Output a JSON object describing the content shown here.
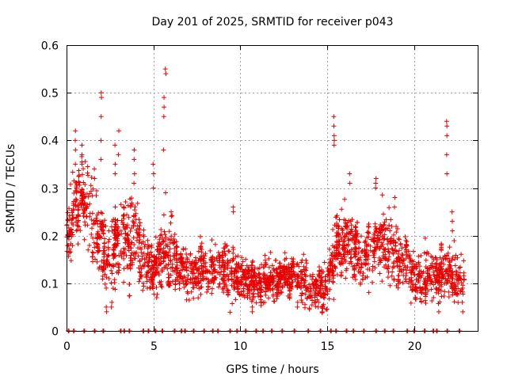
{
  "chart_data": {
    "type": "scatter",
    "title": "Day 201 of 2025, SRMTID for receiver p043",
    "xlabel": "GPS time / hours",
    "ylabel": "SRMTID / TECUs",
    "xlim": [
      0,
      23.67
    ],
    "ylim": [
      0,
      0.6
    ],
    "x_ticks": [
      0,
      5,
      10,
      15,
      20
    ],
    "x_tick_labels": [
      "0",
      "5",
      "10",
      "15",
      "20"
    ],
    "y_ticks": [
      0,
      0.1,
      0.2,
      0.3,
      0.4,
      0.5,
      0.6
    ],
    "y_tick_labels": [
      "0",
      "0.1",
      "0.2",
      "0.3",
      "0.4",
      "0.5",
      "0.6"
    ],
    "grid": true,
    "marker": "plus",
    "color": "#e60000",
    "x_end_hours": 22.9,
    "envelope_hours": [
      0,
      0.5,
      1.0,
      1.5,
      2.0,
      2.5,
      3.0,
      3.5,
      4.0,
      4.5,
      5.0,
      5.5,
      6.0,
      6.5,
      7.0,
      7.5,
      8.0,
      8.5,
      9.0,
      9.5,
      10.0,
      10.5,
      11.0,
      11.5,
      12.0,
      12.5,
      13.0,
      13.5,
      14.0,
      14.5,
      15.0,
      15.5,
      16.0,
      16.5,
      17.0,
      17.5,
      18.0,
      18.5,
      19.0,
      19.5,
      20.0,
      20.5,
      21.0,
      21.5,
      22.0,
      22.5,
      23.0
    ],
    "envelope_median": [
      0.2,
      0.25,
      0.27,
      0.24,
      0.18,
      0.16,
      0.19,
      0.2,
      0.2,
      0.15,
      0.13,
      0.16,
      0.16,
      0.13,
      0.12,
      0.12,
      0.13,
      0.13,
      0.13,
      0.12,
      0.11,
      0.11,
      0.1,
      0.11,
      0.11,
      0.11,
      0.12,
      0.11,
      0.09,
      0.09,
      0.1,
      0.18,
      0.19,
      0.18,
      0.15,
      0.17,
      0.19,
      0.18,
      0.15,
      0.14,
      0.12,
      0.12,
      0.11,
      0.12,
      0.12,
      0.11,
      0.11
    ],
    "envelope_spread": [
      0.06,
      0.08,
      0.09,
      0.09,
      0.08,
      0.08,
      0.08,
      0.08,
      0.08,
      0.06,
      0.05,
      0.06,
      0.06,
      0.05,
      0.05,
      0.05,
      0.05,
      0.05,
      0.05,
      0.05,
      0.04,
      0.04,
      0.04,
      0.04,
      0.04,
      0.04,
      0.04,
      0.04,
      0.04,
      0.04,
      0.05,
      0.07,
      0.07,
      0.06,
      0.06,
      0.07,
      0.07,
      0.06,
      0.06,
      0.05,
      0.05,
      0.05,
      0.05,
      0.05,
      0.05,
      0.05,
      0.05
    ],
    "spikes": [
      {
        "x": 0.5,
        "values": [
          0.42,
          0.4,
          0.38,
          0.35
        ]
      },
      {
        "x": 0.9,
        "values": [
          0.39,
          0.37,
          0.35
        ]
      },
      {
        "x": 1.6,
        "values": [
          0.34,
          0.32
        ]
      },
      {
        "x": 2.0,
        "values": [
          0.5,
          0.49,
          0.45,
          0.4,
          0.36
        ]
      },
      {
        "x": 2.8,
        "values": [
          0.39,
          0.35,
          0.33
        ]
      },
      {
        "x": 3.0,
        "values": [
          0.42,
          0.37
        ]
      },
      {
        "x": 3.9,
        "values": [
          0.38,
          0.36,
          0.33,
          0.31
        ]
      },
      {
        "x": 5.0,
        "values": [
          0.35,
          0.33,
          0.3
        ]
      },
      {
        "x": 5.6,
        "values": [
          0.49,
          0.47,
          0.45,
          0.38
        ]
      },
      {
        "x": 5.7,
        "values": [
          0.55,
          0.54,
          0.29
        ]
      },
      {
        "x": 9.6,
        "values": [
          0.26,
          0.25
        ]
      },
      {
        "x": 15.4,
        "values": [
          0.45,
          0.43,
          0.41,
          0.4,
          0.39
        ]
      },
      {
        "x": 16.3,
        "values": [
          0.33,
          0.31
        ]
      },
      {
        "x": 17.8,
        "values": [
          0.32,
          0.31,
          0.3
        ]
      },
      {
        "x": 18.9,
        "values": [
          0.28,
          0.26
        ]
      },
      {
        "x": 21.9,
        "values": [
          0.44,
          0.43,
          0.41,
          0.37,
          0.33
        ]
      },
      {
        "x": 22.2,
        "values": [
          0.25,
          0.23,
          0.21
        ]
      }
    ],
    "dips": [
      {
        "x": 2.3,
        "values": [
          0.04,
          0.05
        ]
      },
      {
        "x": 2.6,
        "values": [
          0.05,
          0.06
        ]
      },
      {
        "x": 10.7,
        "values": [
          0.05,
          0.04
        ]
      },
      {
        "x": 13.3,
        "values": [
          0.06,
          0.05
        ]
      },
      {
        "x": 14.5,
        "values": [
          0.05,
          0.06
        ]
      },
      {
        "x": 22.8,
        "values": [
          0.04,
          0.06
        ]
      }
    ],
    "zero_values_hours": [
      0.1,
      0.4,
      1.0,
      1.6,
      2.1,
      3.1,
      3.3,
      3.6,
      4.4,
      4.7,
      5.1,
      5.5,
      6.2,
      6.6,
      6.8,
      7.3,
      7.9,
      8.4,
      8.7,
      9.4,
      9.8,
      10.3,
      10.9,
      11.3,
      11.8,
      12.4,
      13.1,
      13.9,
      14.6,
      15.2,
      15.5,
      16.1,
      16.5,
      17.1,
      17.8,
      18.3,
      18.8,
      19.6,
      20.0,
      20.6,
      21.1,
      21.3,
      21.9,
      22.6
    ]
  }
}
